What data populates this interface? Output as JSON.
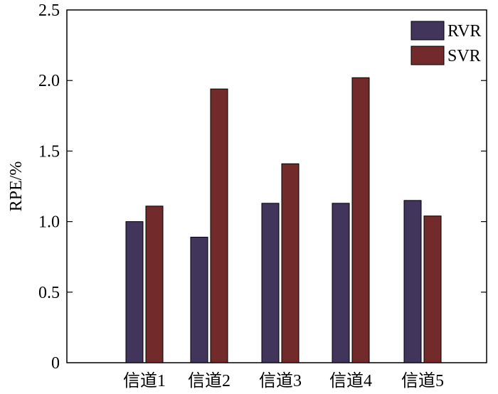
{
  "chart_data": {
    "type": "bar",
    "categories": [
      "信道1",
      "信道2",
      "信道3",
      "信道4",
      "信道5"
    ],
    "series": [
      {
        "name": "RVR",
        "values": [
          1.0,
          0.89,
          1.13,
          1.13,
          1.15
        ]
      },
      {
        "name": "SVR",
        "values": [
          1.11,
          1.94,
          1.41,
          2.02,
          1.04
        ]
      }
    ],
    "xlabel": "",
    "ylabel": "RPE/%",
    "ylim": [
      0,
      2.5
    ],
    "yticks": [
      "0",
      "0.5",
      "1.0",
      "1.5",
      "2.0",
      "2.5"
    ],
    "grid": false,
    "legend_position": "top-right",
    "colors": {
      "RVR": "#41355c",
      "SVR": "#722a2b"
    }
  }
}
